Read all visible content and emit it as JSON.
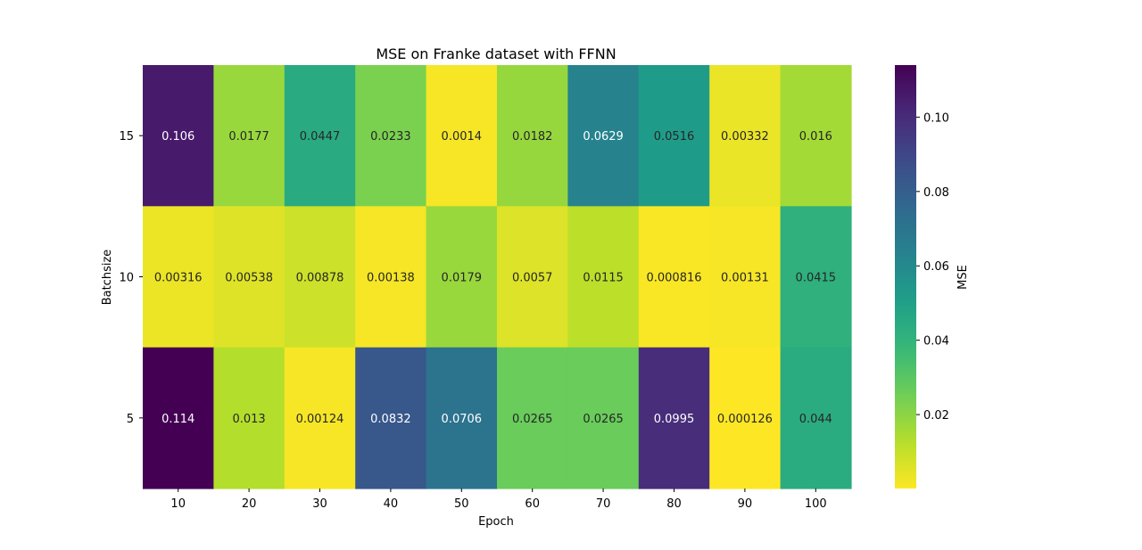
{
  "chart_data": {
    "type": "heatmap",
    "title": "MSE on Franke dataset with FFNN",
    "xlabel": "Epoch",
    "ylabel": "Batchsize",
    "x_categories": [
      "10",
      "20",
      "30",
      "40",
      "50",
      "60",
      "70",
      "80",
      "90",
      "100"
    ],
    "y_categories": [
      "15",
      "10",
      "5"
    ],
    "values": [
      [
        0.106,
        0.0177,
        0.0447,
        0.0233,
        0.0014,
        0.0182,
        0.0629,
        0.0516,
        0.00332,
        0.016
      ],
      [
        0.00316,
        0.00538,
        0.00878,
        0.00138,
        0.0179,
        0.0057,
        0.0115,
        0.000816,
        0.00131,
        0.0415
      ],
      [
        0.114,
        0.013,
        0.00124,
        0.0832,
        0.0706,
        0.0265,
        0.0265,
        0.0995,
        0.000126,
        0.044
      ]
    ],
    "value_labels": [
      [
        "0.106",
        "0.0177",
        "0.0447",
        "0.0233",
        "0.0014",
        "0.0182",
        "0.0629",
        "0.0516",
        "0.00332",
        "0.016"
      ],
      [
        "0.00316",
        "0.00538",
        "0.00878",
        "0.00138",
        "0.0179",
        "0.0057",
        "0.0115",
        "0.000816",
        "0.00131",
        "0.0415"
      ],
      [
        "0.114",
        "0.013",
        "0.00124",
        "0.0832",
        "0.0706",
        "0.0265",
        "0.0265",
        "0.0995",
        "0.000126",
        "0.044"
      ]
    ],
    "colormap": "viridis_r",
    "colorbar": {
      "label": "MSE",
      "vmin": 0.000126,
      "vmax": 0.114,
      "ticks": [
        0.02,
        0.04,
        0.06,
        0.08,
        0.1
      ],
      "tick_labels": [
        "0.02",
        "0.04",
        "0.06",
        "0.08",
        "0.10"
      ]
    },
    "grid": false,
    "legend": "none"
  }
}
